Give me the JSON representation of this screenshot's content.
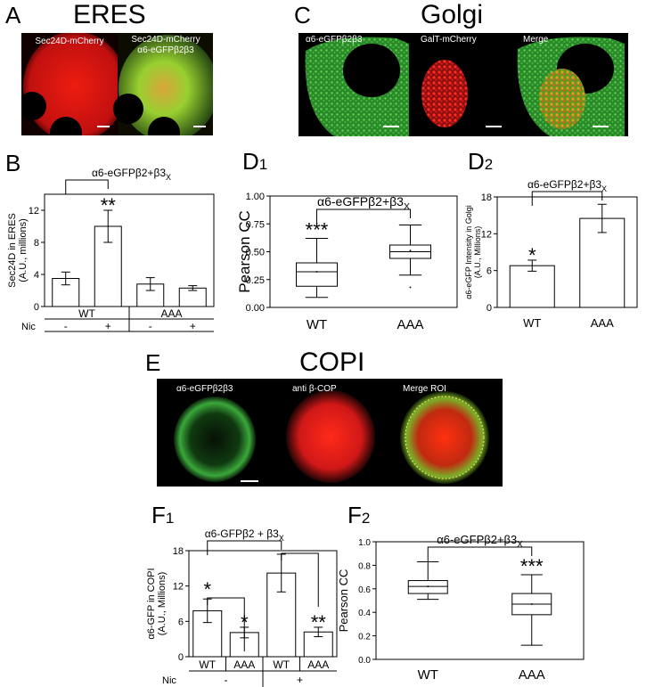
{
  "panels": {
    "A": {
      "letter": "A",
      "title": "ERES",
      "captions": [
        "Sec24D-mCherry",
        "Sec24D-mCherry",
        "α6-eGFPβ2β3"
      ]
    },
    "B": {
      "letter": "B"
    },
    "C": {
      "letter": "C",
      "title": "Golgi",
      "captions": [
        "α6-eGFPβ2β3",
        "GalT-mCherry",
        "Merge"
      ]
    },
    "D1": {
      "letter": "D",
      "sub": "1"
    },
    "D2": {
      "letter": "D",
      "sub": "2"
    },
    "E": {
      "letter": "E",
      "title": "COPI",
      "captions": [
        "α6-eGFPβ2β3",
        "anti β-COP",
        "Merge ROI"
      ]
    },
    "F1": {
      "letter": "F",
      "sub": "1"
    },
    "F2": {
      "letter": "F",
      "sub": "2"
    }
  },
  "colors": {
    "green": "#3cc83c",
    "red": "#e81818",
    "yellow": "#d8c040",
    "black": "#000000"
  },
  "chart_data": [
    {
      "id": "B",
      "type": "bar",
      "ylabel": "Sec24D in ERES (A.U., millions)",
      "ylim": [
        0,
        14
      ],
      "yticks": [
        0,
        4,
        8,
        12
      ],
      "groups": [
        "WT",
        "AAA"
      ],
      "row_label": "Nic",
      "categories": [
        "-",
        "+",
        "-",
        "+"
      ],
      "values": [
        3.5,
        10.0,
        2.8,
        2.3
      ],
      "errors": [
        0.8,
        2.0,
        0.8,
        0.3
      ],
      "significance": [
        {
          "text": "**",
          "index": 1
        }
      ],
      "comparison": {
        "text": "α6-eGFPβ2+β3",
        "subscript": "X",
        "from": 0,
        "to": 1
      }
    },
    {
      "id": "D1",
      "type": "box",
      "ylabel": "Pearson CC",
      "ylim": [
        0,
        1.0
      ],
      "yticks": [
        "0.00",
        "0.25",
        "0.50",
        "0.75",
        "1.00"
      ],
      "categories": [
        "WT",
        "AAA"
      ],
      "boxes": [
        {
          "min": 0.09,
          "q1": 0.19,
          "median": 0.32,
          "q3": 0.4,
          "max": 0.62,
          "mean": 0.32,
          "outliers": []
        },
        {
          "min": 0.29,
          "q1": 0.44,
          "median": 0.5,
          "q3": 0.56,
          "max": 0.74,
          "mean": 0.51,
          "outliers": [
            0.18
          ]
        }
      ],
      "significance": [
        {
          "text": "***",
          "index": 0
        }
      ],
      "comparison": {
        "text": "α6-eGFPβ2+β3",
        "subscript": "X",
        "from": 0,
        "to": 1
      }
    },
    {
      "id": "D2",
      "type": "bar",
      "ylabel": "α6-eGFP Intensity in Golgi (A.U., Millions)",
      "ylim": [
        0,
        18
      ],
      "yticks": [
        0,
        6,
        12,
        18
      ],
      "categories": [
        "WT",
        "AAA"
      ],
      "values": [
        6.8,
        14.5
      ],
      "errors": [
        0.9,
        2.3
      ],
      "significance": [
        {
          "text": "*",
          "index": 0
        }
      ],
      "comparison": {
        "text": "α6-eGFPβ2+β3",
        "subscript": "X",
        "from": 0,
        "to": 1
      }
    },
    {
      "id": "F1",
      "type": "bar",
      "ylabel": "α6-GFP in COPI (A.U., Millions)",
      "ylim": [
        0,
        18
      ],
      "yticks": [
        0,
        6,
        12,
        18
      ],
      "categories": [
        "WT",
        "AAA",
        "WT",
        "AAA"
      ],
      "groups": [
        "-",
        "+"
      ],
      "row_label": "Nic",
      "values": [
        7.8,
        4.1,
        14.2,
        4.2
      ],
      "errors": [
        2.0,
        0.9,
        3.2,
        0.8
      ],
      "significance": [
        {
          "text": "*",
          "index": 1
        },
        {
          "text": "**",
          "index": 3
        }
      ],
      "comparison": {
        "text": "α6-GFPβ2 + β3",
        "subscript": "X",
        "from": 0,
        "to": 2
      },
      "extra_brackets": [
        {
          "text": "*",
          "from": 0,
          "to": 1
        },
        {
          "text": "",
          "from": 2,
          "to": 3
        }
      ]
    },
    {
      "id": "F2",
      "type": "box",
      "ylabel": "Pearson CC",
      "ylim": [
        0,
        1.0
      ],
      "yticks": [
        "0.0",
        "0.2",
        "0.4",
        "0.6",
        "0.8",
        "1.0"
      ],
      "categories": [
        "WT",
        "AAA"
      ],
      "boxes": [
        {
          "min": 0.51,
          "q1": 0.56,
          "median": 0.62,
          "q3": 0.67,
          "max": 0.83,
          "mean": 0.62,
          "outliers": []
        },
        {
          "min": 0.12,
          "q1": 0.38,
          "median": 0.47,
          "q3": 0.56,
          "max": 0.72,
          "mean": 0.47,
          "outliers": []
        }
      ],
      "significance": [
        {
          "text": "***",
          "index": 1
        }
      ],
      "comparison": {
        "text": "α6-eGFPβ2+β3",
        "subscript": "X",
        "from": 0,
        "to": 1
      }
    }
  ]
}
